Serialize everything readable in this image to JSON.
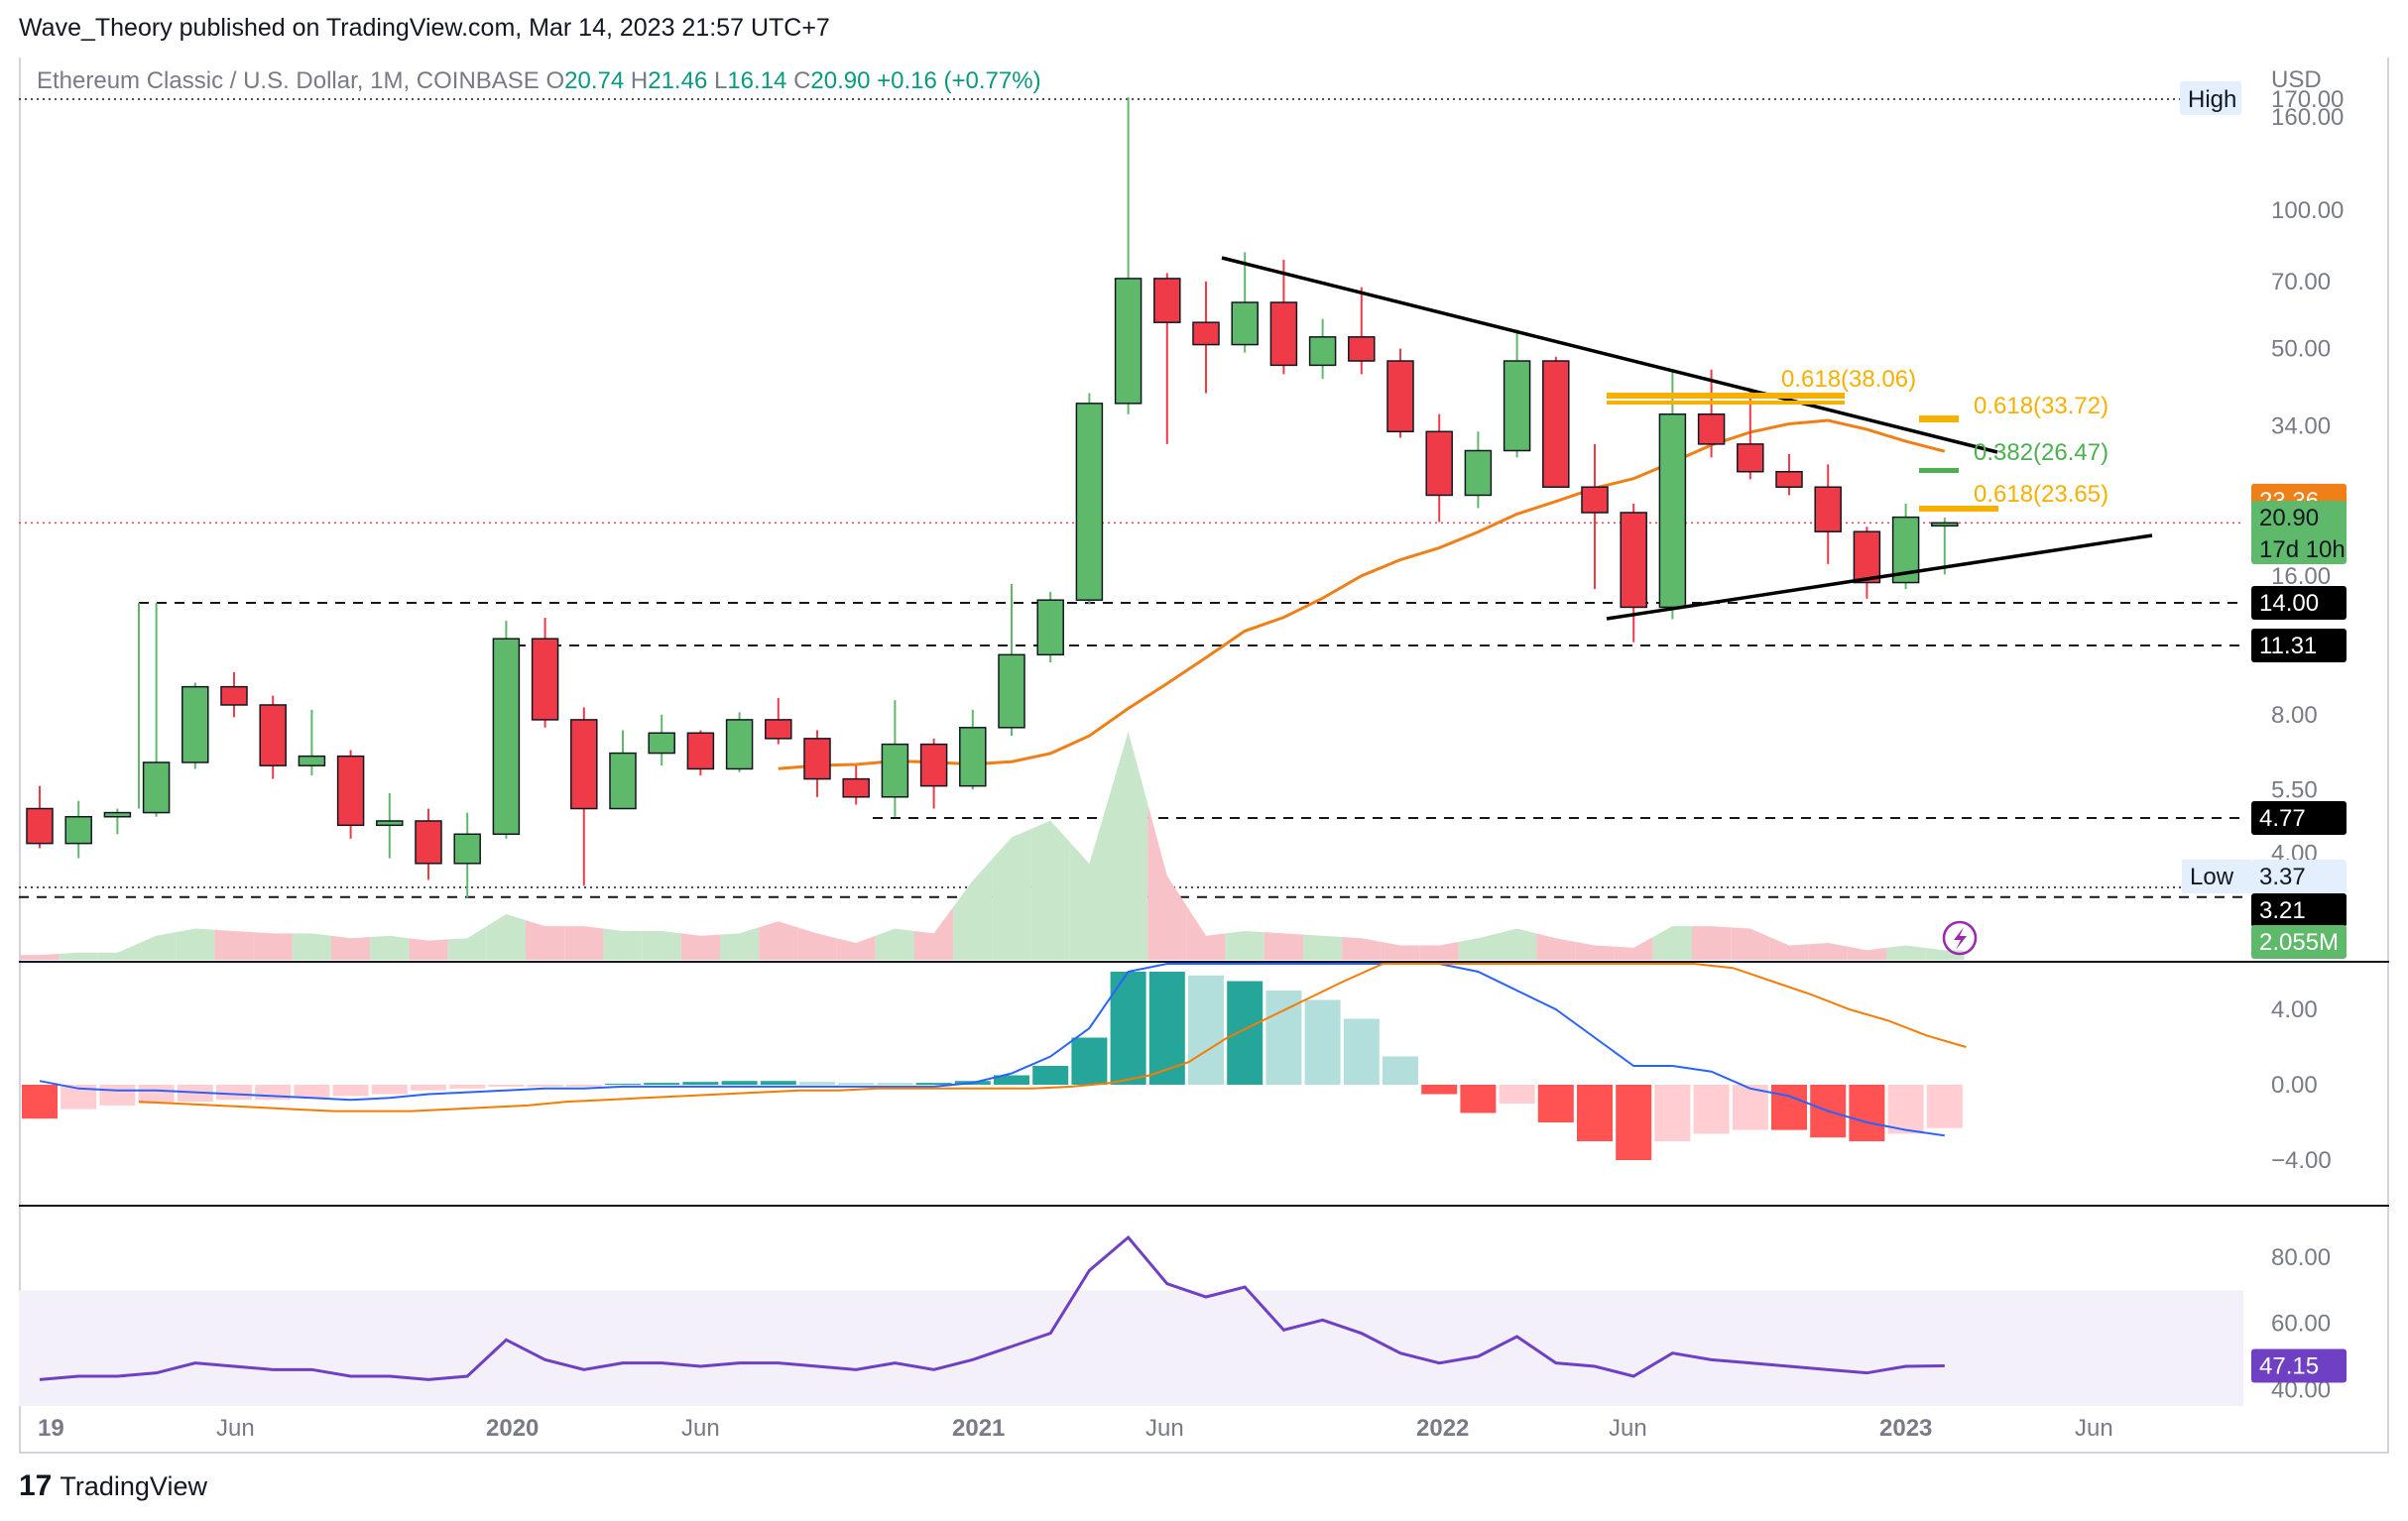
{
  "header": {
    "text": "Wave_Theory published on TradingView.com, Mar 14, 2023 21:57 UTC+7"
  },
  "legend": {
    "symbol": "Ethereum Classic / U.S. Dollar, 1M, COINBASE",
    "o_key": "O",
    "o_val": "20.74",
    "h_key": "H",
    "h_val": "21.46",
    "l_key": "L",
    "l_val": "16.14",
    "c_key": "C",
    "c_val": "20.90",
    "change": "+0.16 (+0.77%)"
  },
  "footer": {
    "brand": "TradingView",
    "logo": "17"
  },
  "colors": {
    "up": "#5fb96a",
    "down": "#ef3a47",
    "ma": "#f07f18",
    "rsi": "#6f3fc4",
    "macd": "#2962ff",
    "signal": "#f57c00",
    "fib": "#f5b000",
    "fib_green": "#4caf50"
  },
  "chart_data": [
    {
      "type": "candlestick",
      "title": "Ethereum Classic / U.S. Dollar, 1M, COINBASE",
      "currency": "USD",
      "scale": "log",
      "ylim": [
        3,
        180
      ],
      "x_labels": [
        "19",
        "Jun",
        "2020",
        "Jun",
        "2021",
        "Jun",
        "2022",
        "Jun",
        "2023",
        "Jun"
      ],
      "y_ticks": [
        "170.00",
        "160.00",
        "100.00",
        "70.00",
        "50.00",
        "34.00",
        "16.00",
        "8.00",
        "5.50",
        "4.00"
      ],
      "candles": [
        {
          "o": 5.0,
          "h": 5.6,
          "l": 4.1,
          "c": 4.2
        },
        {
          "o": 4.2,
          "h": 5.2,
          "l": 3.9,
          "c": 4.8
        },
        {
          "o": 4.8,
          "h": 5.0,
          "l": 4.4,
          "c": 4.9
        },
        {
          "o": 4.9,
          "h": 14.0,
          "l": 4.8,
          "c": 6.3
        },
        {
          "o": 6.3,
          "h": 9.4,
          "l": 6.1,
          "c": 9.2
        },
        {
          "o": 9.2,
          "h": 9.9,
          "l": 7.9,
          "c": 8.4
        },
        {
          "o": 8.4,
          "h": 8.8,
          "l": 5.8,
          "c": 6.2
        },
        {
          "o": 6.2,
          "h": 8.2,
          "l": 5.9,
          "c": 6.5
        },
        {
          "o": 6.5,
          "h": 6.7,
          "l": 4.3,
          "c": 4.6
        },
        {
          "o": 4.6,
          "h": 5.4,
          "l": 3.9,
          "c": 4.7
        },
        {
          "o": 4.7,
          "h": 5.0,
          "l": 3.5,
          "c": 3.8
        },
        {
          "o": 3.8,
          "h": 4.9,
          "l": 3.2,
          "c": 4.4
        },
        {
          "o": 4.4,
          "h": 12.8,
          "l": 4.3,
          "c": 11.7
        },
        {
          "o": 11.7,
          "h": 13.0,
          "l": 7.5,
          "c": 7.8
        },
        {
          "o": 7.8,
          "h": 8.3,
          "l": 3.4,
          "c": 5.0
        },
        {
          "o": 5.0,
          "h": 7.4,
          "l": 5.0,
          "c": 6.6
        },
        {
          "o": 6.6,
          "h": 8.0,
          "l": 6.2,
          "c": 7.3
        },
        {
          "o": 7.3,
          "h": 7.4,
          "l": 5.9,
          "c": 6.1
        },
        {
          "o": 6.1,
          "h": 8.1,
          "l": 6.0,
          "c": 7.8
        },
        {
          "o": 7.8,
          "h": 8.7,
          "l": 6.9,
          "c": 7.1
        },
        {
          "o": 7.1,
          "h": 7.4,
          "l": 5.3,
          "c": 5.8
        },
        {
          "o": 5.8,
          "h": 6.2,
          "l": 5.1,
          "c": 5.3
        },
        {
          "o": 5.3,
          "h": 8.6,
          "l": 4.8,
          "c": 6.9
        },
        {
          "o": 6.9,
          "h": 7.1,
          "l": 5.0,
          "c": 5.6
        },
        {
          "o": 5.6,
          "h": 8.2,
          "l": 5.5,
          "c": 7.5
        },
        {
          "o": 7.5,
          "h": 15.4,
          "l": 7.2,
          "c": 10.8
        },
        {
          "o": 10.8,
          "h": 14.8,
          "l": 10.4,
          "c": 14.2
        },
        {
          "o": 14.2,
          "h": 40.0,
          "l": 13.9,
          "c": 38.0
        },
        {
          "o": 38.0,
          "h": 176.0,
          "l": 36.0,
          "c": 71.0
        },
        {
          "o": 71.0,
          "h": 73.0,
          "l": 31.0,
          "c": 57.0
        },
        {
          "o": 57.0,
          "h": 70.0,
          "l": 40.0,
          "c": 51.0
        },
        {
          "o": 51.0,
          "h": 81.0,
          "l": 49.0,
          "c": 63.0
        },
        {
          "o": 63.0,
          "h": 78.0,
          "l": 44.0,
          "c": 46.0
        },
        {
          "o": 46.0,
          "h": 58.0,
          "l": 43.0,
          "c": 53.0
        },
        {
          "o": 53.0,
          "h": 68.0,
          "l": 44.0,
          "c": 47.0
        },
        {
          "o": 47.0,
          "h": 50.0,
          "l": 32.0,
          "c": 33.0
        },
        {
          "o": 33.0,
          "h": 36.0,
          "l": 21.0,
          "c": 24.0
        },
        {
          "o": 24.0,
          "h": 33.0,
          "l": 22.5,
          "c": 30.0
        },
        {
          "o": 30.0,
          "h": 55.0,
          "l": 29.0,
          "c": 47.0
        },
        {
          "o": 47.0,
          "h": 48.0,
          "l": 25.0,
          "c": 25.0
        },
        {
          "o": 25.0,
          "h": 31.0,
          "l": 15.0,
          "c": 22.0
        },
        {
          "o": 22.0,
          "h": 23.0,
          "l": 11.5,
          "c": 13.7
        },
        {
          "o": 13.7,
          "h": 45.0,
          "l": 12.9,
          "c": 36.0
        },
        {
          "o": 36.0,
          "h": 45.0,
          "l": 29.0,
          "c": 31.0
        },
        {
          "o": 31.0,
          "h": 41.0,
          "l": 26.0,
          "c": 27.0
        },
        {
          "o": 27.0,
          "h": 29.5,
          "l": 24.0,
          "c": 25.0
        },
        {
          "o": 25.0,
          "h": 28.0,
          "l": 17.0,
          "c": 20.0
        },
        {
          "o": 20.0,
          "h": 20.5,
          "l": 14.3,
          "c": 15.5
        },
        {
          "o": 15.5,
          "h": 23.0,
          "l": 15.0,
          "c": 21.5
        },
        {
          "o": 20.74,
          "h": 21.46,
          "l": 16.14,
          "c": 20.9
        }
      ],
      "ma_values": [
        null,
        null,
        null,
        null,
        null,
        null,
        null,
        null,
        null,
        null,
        null,
        null,
        null,
        null,
        null,
        null,
        null,
        null,
        null,
        null,
        null,
        null,
        null,
        null,
        null,
        null,
        null,
        null,
        null,
        null,
        null,
        null,
        null,
        null,
        null,
        null,
        null,
        null,
        null,
        null,
        null,
        null,
        null,
        null,
        null,
        null,
        null,
        null,
        null,
        null
      ],
      "levels": [
        {
          "value": "14.00",
          "style": "dashed"
        },
        {
          "value": "11.31",
          "style": "dashed"
        },
        {
          "value": "4.77",
          "style": "dashed"
        },
        {
          "value": "3.21",
          "style": "dashed"
        }
      ],
      "price_tags": [
        {
          "label": "23.36",
          "bg": "#f07f18",
          "fg": "#ffffff"
        },
        {
          "label": "20.90",
          "sub": "17d 10h",
          "bg": "#5fb96a",
          "fg": "#131722"
        },
        {
          "label": "14.00",
          "bg": "#000000",
          "fg": "#ffffff"
        },
        {
          "label": "11.31",
          "bg": "#000000",
          "fg": "#ffffff"
        },
        {
          "label": "4.77",
          "bg": "#000000",
          "fg": "#ffffff"
        },
        {
          "label": "3.37",
          "prefix": "Low",
          "bg": "#e3effd",
          "fg": "#131722"
        },
        {
          "label": "3.21",
          "bg": "#000000",
          "fg": "#ffffff"
        },
        {
          "label": "2.055M",
          "bg": "#5fb96a",
          "fg": "#ffffff"
        }
      ],
      "high_label": "High",
      "fib_labels": [
        {
          "text": "0.618(38.06)",
          "color": "#f5b000"
        },
        {
          "text": "0.618(33.72)",
          "color": "#f5b000"
        },
        {
          "text": "0.382(26.47)",
          "color": "#4caf50"
        },
        {
          "text": "0.618(23.65)",
          "color": "#f5b000"
        }
      ],
      "trendlines": [
        {
          "from": {
            "x": "Aug 2021",
            "y": 80
          },
          "to": {
            "x": "Mar 2023",
            "y": 28
          }
        },
        {
          "from": {
            "x": "Jun 2022",
            "y": 11.6
          },
          "to": {
            "x": "Jun 2023",
            "y": 19
          }
        }
      ]
    },
    {
      "type": "bar",
      "title": "Volume",
      "values": [
        0.2,
        0.3,
        0.3,
        1.0,
        1.3,
        1.2,
        1.1,
        1.1,
        0.9,
        1.0,
        0.8,
        0.9,
        1.9,
        1.4,
        1.4,
        1.2,
        1.2,
        1.0,
        1.1,
        1.6,
        1.1,
        0.7,
        1.3,
        1.1,
        3.3,
        5.1,
        5.8,
        4.0,
        9.5,
        3.5,
        1.0,
        1.2,
        1.1,
        1.0,
        0.9,
        0.6,
        0.6,
        0.9,
        1.3,
        0.9,
        0.6,
        0.5,
        1.4,
        1.4,
        1.3,
        0.6,
        0.7,
        0.4,
        0.6,
        0.4
      ],
      "up": [
        false,
        true,
        true,
        true,
        true,
        false,
        false,
        true,
        false,
        true,
        false,
        true,
        true,
        false,
        false,
        true,
        true,
        false,
        true,
        false,
        false,
        false,
        true,
        false,
        true,
        true,
        true,
        true,
        true,
        false,
        false,
        true,
        false,
        true,
        false,
        false,
        false,
        true,
        true,
        false,
        false,
        false,
        true,
        false,
        false,
        false,
        false,
        false,
        true,
        true
      ],
      "last_label": "2.055M"
    },
    {
      "type": "bar+line",
      "title": "MACD",
      "y_ticks": [
        "4.00",
        "0.00",
        "−4.00"
      ],
      "ylim": [
        -6.0,
        6.0
      ],
      "histogram": [
        -1.8,
        -1.3,
        -1.1,
        -1.0,
        -0.9,
        -0.8,
        -0.8,
        -0.7,
        -0.6,
        -0.5,
        -0.3,
        -0.2,
        -0.1,
        -0.1,
        -0.1,
        0.05,
        0.1,
        0.15,
        0.2,
        0.2,
        0.15,
        0.1,
        0.1,
        0.1,
        0.2,
        0.5,
        1.0,
        2.5,
        6.0,
        6.0,
        5.8,
        5.5,
        5.0,
        4.5,
        3.5,
        1.5,
        -0.5,
        -1.5,
        -1.0,
        -2.0,
        -3.0,
        -4.0,
        -3.0,
        -2.6,
        -2.4,
        -2.4,
        -2.8,
        -3.0,
        -2.6,
        -2.3
      ],
      "macd": [
        0.2,
        -0.2,
        -0.3,
        -0.3,
        -0.4,
        -0.5,
        -0.6,
        -0.7,
        -0.8,
        -0.7,
        -0.5,
        -0.4,
        -0.3,
        -0.2,
        -0.2,
        -0.1,
        -0.1,
        -0.1,
        -0.1,
        -0.1,
        -0.1,
        -0.1,
        -0.1,
        -0.1,
        0.1,
        0.6,
        1.5,
        3.0,
        6.0,
        7.0,
        8.0,
        9.0,
        9.5,
        10.0,
        10.0,
        9.0,
        7.5,
        6.0,
        5.0,
        4.0,
        2.5,
        1.0,
        1.0,
        0.7,
        -0.2,
        -0.6,
        -1.4,
        -2.0,
        -2.4,
        -2.7
      ],
      "signal": [
        -0.9,
        -1.0,
        -1.1,
        -1.2,
        -1.3,
        -1.4,
        -1.4,
        -1.4,
        -1.3,
        -1.2,
        -1.1,
        -0.9,
        -0.8,
        -0.7,
        -0.6,
        -0.5,
        -0.4,
        -0.3,
        -0.3,
        -0.2,
        -0.2,
        -0.2,
        -0.2,
        -0.2,
        -0.1,
        0.1,
        0.5,
        1.2,
        2.5,
        3.5,
        4.5,
        5.5,
        6.5,
        7.0,
        7.5,
        7.8,
        7.9,
        7.8,
        7.6,
        7.2,
        6.8,
        6.2,
        5.5,
        4.8,
        4.0,
        3.4,
        2.6,
        2.0,
        1.4,
        0.9
      ],
      "hist_colors": [
        "#ff5252",
        "#ffcdd2",
        "#ffcdd2",
        "#ffcdd2",
        "#ffcdd2",
        "#ffcdd2",
        "#ffcdd2",
        "#ffcdd2",
        "#ffcdd2",
        "#ffcdd2",
        "#ffcdd2",
        "#ffcdd2",
        "#ffcdd2",
        "#ffcdd2",
        "#ffcdd2",
        "#26a69a",
        "#26a69a",
        "#26a69a",
        "#26a69a",
        "#26a69a",
        "#b2dfdb",
        "#b2dfdb",
        "#b2dfdb",
        "#26a69a",
        "#26a69a",
        "#26a69a",
        "#26a69a",
        "#26a69a",
        "#26a69a",
        "#26a69a",
        "#b2dfdb",
        "#26a69a",
        "#b2dfdb",
        "#b2dfdb",
        "#b2dfdb",
        "#b2dfdb",
        "#ff5252",
        "#ff5252",
        "#ffcdd2",
        "#ff5252",
        "#ff5252",
        "#ff5252",
        "#ffcdd2",
        "#ffcdd2",
        "#ffcdd2",
        "#ff5252",
        "#ff5252",
        "#ff5252",
        "#ffcdd2",
        "#ffcdd2"
      ]
    },
    {
      "type": "line",
      "title": "RSI",
      "y_ticks": [
        "80.00",
        "60.00",
        "40.00"
      ],
      "ylim": [
        35,
        95
      ],
      "band": [
        30,
        70
      ],
      "values": [
        43,
        44,
        44,
        45,
        48,
        47,
        46,
        46,
        44,
        44,
        43,
        44,
        55,
        49,
        46,
        48,
        48,
        47,
        48,
        48,
        47,
        46,
        48,
        46,
        49,
        53,
        57,
        76,
        86,
        72,
        68,
        71,
        58,
        61,
        57,
        51,
        48,
        50,
        56,
        48,
        47,
        44,
        51,
        49,
        48,
        47,
        46,
        45,
        47,
        47.15
      ],
      "last_label": "47.15"
    }
  ],
  "y_axis_unit": "USD"
}
